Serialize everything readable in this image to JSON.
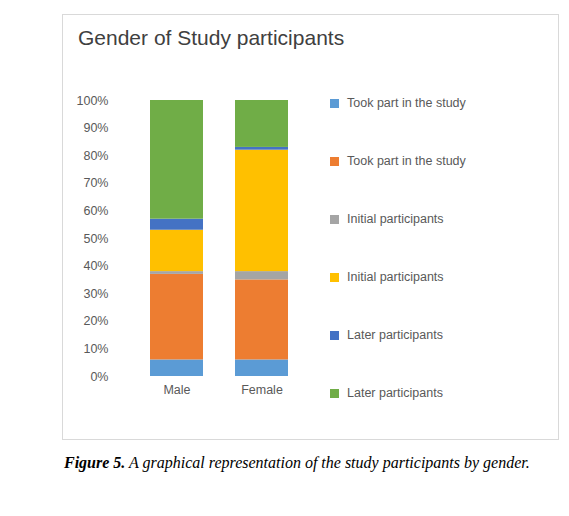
{
  "chart_data": {
    "type": "bar",
    "stacked": true,
    "title": "Gender of Study participants",
    "caption_label": "Figure 5.",
    "caption": "A graphical representation of the study participants by gender.",
    "categories": [
      "Male",
      "Female"
    ],
    "series": [
      {
        "name": "Took part in the study",
        "color": "#5b9bd5",
        "values": [
          6,
          6
        ]
      },
      {
        "name": "Took part in the study",
        "color": "#ed7d31",
        "values": [
          31,
          29
        ]
      },
      {
        "name": "Initial participants",
        "color": "#a5a5a5",
        "values": [
          1,
          3
        ]
      },
      {
        "name": "Initial participants",
        "color": "#ffc000",
        "values": [
          15,
          44
        ]
      },
      {
        "name": "Later participants",
        "color": "#4472c4",
        "values": [
          4,
          1
        ]
      },
      {
        "name": "Later participants",
        "color": "#70ad47",
        "values": [
          43,
          17
        ]
      }
    ],
    "ylim": [
      0,
      100
    ],
    "yticks": [
      {
        "value": 0,
        "label": "0%"
      },
      {
        "value": 10,
        "label": "10%"
      },
      {
        "value": 20,
        "label": "20%"
      },
      {
        "value": 30,
        "label": "30%"
      },
      {
        "value": 40,
        "label": "40%"
      },
      {
        "value": 50,
        "label": "50%"
      },
      {
        "value": 60,
        "label": "60%"
      },
      {
        "value": 70,
        "label": "70%"
      },
      {
        "value": 80,
        "label": "80%"
      },
      {
        "value": 90,
        "label": "90%"
      },
      {
        "value": 100,
        "label": "100%"
      }
    ],
    "grid": false,
    "legend": "right"
  }
}
